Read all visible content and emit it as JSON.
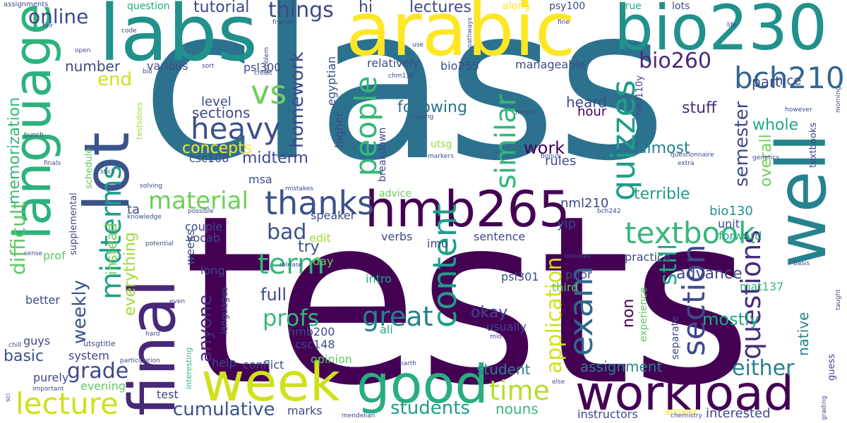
{
  "words": [
    {
      "text": "tests",
      "color": "#440154"
    },
    {
      "text": "class",
      "color": "#2c728e"
    },
    {
      "text": "language",
      "color": "#2db27d"
    },
    {
      "text": "labs",
      "color": "#21918c"
    },
    {
      "text": "arabic",
      "color": "#fde725"
    },
    {
      "text": "bio230",
      "color": "#21918c"
    },
    {
      "text": "lot",
      "color": "#3b528b"
    },
    {
      "text": "final",
      "color": "#482878"
    },
    {
      "text": "well",
      "color": "#26828e"
    },
    {
      "text": "week",
      "color": "#d0e11c"
    },
    {
      "text": "good",
      "color": "#28ae80"
    },
    {
      "text": "workload",
      "color": "#440154"
    },
    {
      "text": "hmb265",
      "color": "#440154"
    },
    {
      "text": "bch210",
      "color": "#31688e"
    },
    {
      "text": "quizzes",
      "color": "#1f9e89"
    },
    {
      "text": "thanks",
      "color": "#3b528b"
    },
    {
      "text": "heavy",
      "color": "#3b528b"
    },
    {
      "text": "vs",
      "color": "#6ece58"
    },
    {
      "text": "term",
      "color": "#35b779"
    },
    {
      "text": "textbook",
      "color": "#35b779"
    },
    {
      "text": "exam",
      "color": "#31688e"
    },
    {
      "text": "people",
      "color": "#35b779"
    },
    {
      "text": "content",
      "color": "#1f9e89"
    },
    {
      "text": "section",
      "color": "#3e4989"
    },
    {
      "text": "questions",
      "color": "#472d7b"
    },
    {
      "text": "similar",
      "color": "#35b779"
    },
    {
      "text": "lecture",
      "color": "#d0e11c"
    },
    {
      "text": "midterms",
      "color": "#1f9e89"
    },
    {
      "text": "material",
      "color": "#6ece58"
    },
    {
      "text": "time",
      "color": "#b5de2b"
    },
    {
      "text": "students",
      "color": "#1f9e89"
    },
    {
      "text": "great",
      "color": "#26828e"
    },
    {
      "text": "profs",
      "color": "#35b779"
    },
    {
      "text": "cumulative",
      "color": "#3b528b"
    },
    {
      "text": "bio260",
      "color": "#482878"
    },
    {
      "text": "things",
      "color": "#3e4989"
    },
    {
      "text": "online",
      "color": "#3e4989"
    },
    {
      "text": "difficult",
      "color": "#5ec962"
    },
    {
      "text": "memorization",
      "color": "#35b779"
    },
    {
      "text": "homework",
      "color": "#3e4989"
    },
    {
      "text": "semester",
      "color": "#3e4989"
    },
    {
      "text": "still",
      "color": "#22a884"
    },
    {
      "text": "either",
      "color": "#26828e"
    },
    {
      "text": "application",
      "color": "#d0e11c"
    },
    {
      "text": "grade",
      "color": "#3e4989"
    },
    {
      "text": "weekly",
      "color": "#3b528b"
    },
    {
      "text": "anyone",
      "color": "#482878"
    },
    {
      "text": "concepts",
      "color": "#fde725"
    },
    {
      "text": "end",
      "color": "#d0e11c"
    },
    {
      "text": "bad",
      "color": "#3b528b"
    },
    {
      "text": "basic",
      "color": "#3b528b"
    },
    {
      "text": "mostly",
      "color": "#22a884"
    },
    {
      "text": "overall",
      "color": "#6ece58"
    },
    {
      "text": "whole",
      "color": "#22a884"
    },
    {
      "text": "stuff",
      "color": "#472d7b"
    },
    {
      "text": "sections",
      "color": "#3e4989"
    },
    {
      "text": "work",
      "color": "#440154"
    },
    {
      "text": "assignment",
      "color": "#26828e"
    },
    {
      "text": "terrible",
      "color": "#1f9e89"
    },
    {
      "text": "advance",
      "color": "#3e4989"
    },
    {
      "text": "everything",
      "color": "#a0da39"
    },
    {
      "text": "instead",
      "color": "#6ece58"
    },
    {
      "text": "following",
      "color": "#2c728e"
    },
    {
      "text": "lectures",
      "color": "#3e4989"
    },
    {
      "text": "tutorial",
      "color": "#3e4989"
    },
    {
      "text": "hi",
      "color": "#3e4989"
    },
    {
      "text": "heard",
      "color": "#3e4989"
    },
    {
      "text": "full",
      "color": "#3e4989"
    },
    {
      "text": "try",
      "color": "#3b528b"
    },
    {
      "text": "okay",
      "color": "#3e4989"
    },
    {
      "text": "non",
      "color": "#440154"
    },
    {
      "text": "student",
      "color": "#26828e"
    },
    {
      "text": "interested",
      "color": "#3e4989"
    },
    {
      "text": "nouns",
      "color": "#35b779"
    },
    {
      "text": "native",
      "color": "#26828e"
    },
    {
      "text": "almost",
      "color": "#26828e"
    },
    {
      "text": "midterm",
      "color": "#3e4989"
    },
    {
      "text": "level",
      "color": "#3e4989"
    },
    {
      "text": "number",
      "color": "#3e4989"
    },
    {
      "text": "part",
      "color": "#3e4989"
    },
    {
      "text": "nice",
      "color": "#3e4989"
    },
    {
      "text": "rules",
      "color": "#3e4989"
    },
    {
      "text": "hour",
      "color": "#440154"
    },
    {
      "text": "bio130",
      "color": "#21918c"
    },
    {
      "text": "unit",
      "color": "#3e4989"
    },
    {
      "text": "nml210",
      "color": "#3e4989"
    },
    {
      "text": "yip",
      "color": "#3e4989"
    },
    {
      "text": "mat137",
      "color": "#35b779"
    },
    {
      "text": "practice",
      "color": "#3e4989"
    },
    {
      "text": "forward",
      "color": "#22a884"
    },
    {
      "text": "ta",
      "color": "#3e4989"
    },
    {
      "text": "couple",
      "color": "#3e4989"
    },
    {
      "text": "vocab",
      "color": "#3e4989"
    },
    {
      "text": "weeks",
      "color": "#3e4989"
    },
    {
      "text": "long",
      "color": "#3e4989"
    },
    {
      "text": "prof",
      "color": "#5ec962"
    },
    {
      "text": "better",
      "color": "#3e4989"
    },
    {
      "text": "system",
      "color": "#3e4989"
    },
    {
      "text": "purely",
      "color": "#3e4989"
    },
    {
      "text": "evening",
      "color": "#5ec962"
    },
    {
      "text": "test",
      "color": "#3e4989"
    },
    {
      "text": "marks",
      "color": "#3e4989"
    },
    {
      "text": "guys",
      "color": "#3e4989"
    },
    {
      "text": "help",
      "color": "#3e4989"
    },
    {
      "text": "conflict",
      "color": "#3e4989"
    },
    {
      "text": "opinion",
      "color": "#5ec962"
    },
    {
      "text": "csc148",
      "color": "#3e4989"
    },
    {
      "text": "hmb200",
      "color": "#3e4989"
    },
    {
      "text": "ali",
      "color": "#22a884"
    },
    {
      "text": "usually",
      "color": "#3e4989"
    },
    {
      "text": "edit",
      "color": "#a0da39"
    },
    {
      "text": "speaker",
      "color": "#3e4989"
    },
    {
      "text": "verbs",
      "color": "#3e4989"
    },
    {
      "text": "imo",
      "color": "#3e4989"
    },
    {
      "text": "sentence",
      "color": "#3e4989"
    },
    {
      "text": "day",
      "color": "#6ece58"
    },
    {
      "text": "intro",
      "color": "#22a884"
    },
    {
      "text": "psl301",
      "color": "#3e4989"
    },
    {
      "text": "prior",
      "color": "#3e4989"
    },
    {
      "text": "third",
      "color": "#5ec962"
    },
    {
      "text": "separate",
      "color": "#3e4989"
    },
    {
      "text": "experience",
      "color": "#5ec962"
    },
    {
      "text": "instructors",
      "color": "#3e4989"
    },
    {
      "text": "answer",
      "color": "#fde725"
    },
    {
      "text": "msa",
      "color": "#3e4989"
    },
    {
      "text": "csc108",
      "color": "#3e4989"
    },
    {
      "text": "advice",
      "color": "#6ece58"
    },
    {
      "text": "various",
      "color": "#3e4989"
    },
    {
      "text": "relatively",
      "color": "#3e4989"
    },
    {
      "text": "bio255",
      "color": "#3e4989"
    },
    {
      "text": "manageable",
      "color": "#3e4989"
    },
    {
      "text": "psl300",
      "color": "#3e4989"
    },
    {
      "text": "egyptian",
      "color": "#3e4989"
    },
    {
      "text": "higher",
      "color": "#3e4989"
    },
    {
      "text": "breakdown",
      "color": "#3e4989"
    },
    {
      "text": "utsg",
      "color": "#a0da39"
    },
    {
      "text": "question",
      "color": "#22a884"
    },
    {
      "text": "along",
      "color": "#fde725"
    },
    {
      "text": "psy100",
      "color": "#3e4989"
    },
    {
      "text": "true",
      "color": "#22a884"
    },
    {
      "text": "lots",
      "color": "#3e4989"
    },
    {
      "text": "nml110y",
      "color": "#3e4989"
    },
    {
      "text": "supplemental",
      "color": "#3e4989"
    },
    {
      "text": "schedule",
      "color": "#5ec962"
    },
    {
      "text": "testsdoes",
      "color": "#a0da39"
    },
    {
      "text": "languages",
      "color": "#3e4989"
    },
    {
      "text": "interesting",
      "color": "#35b779"
    },
    {
      "text": "utsgtitle",
      "color": "#3e4989"
    },
    {
      "text": "textbooks",
      "color": "#3e4989"
    },
    {
      "text": "guess",
      "color": "#3e4989"
    },
    {
      "text": "assignments",
      "color": "#3e4989"
    },
    {
      "text": "fair",
      "color": "#3e4989"
    },
    {
      "text": "code",
      "color": "#3e4989"
    },
    {
      "text": "open",
      "color": "#3e4989"
    },
    {
      "text": "bio",
      "color": "#3e4989"
    },
    {
      "text": "friends",
      "color": "#3e4989"
    },
    {
      "text": "problem",
      "color": "#3e4989"
    },
    {
      "text": "credit",
      "color": "#3e4989"
    },
    {
      "text": "sort",
      "color": "#3e4989"
    },
    {
      "text": "use",
      "color": "#3e4989"
    },
    {
      "text": "pathways",
      "color": "#3e4989"
    },
    {
      "text": "fine",
      "color": "#3e4989"
    },
    {
      "text": "life",
      "color": "#3e4989"
    },
    {
      "text": "chm136",
      "color": "#3e4989"
    },
    {
      "text": "reading",
      "color": "#3e4989"
    },
    {
      "text": "timely",
      "color": "#3e4989"
    },
    {
      "text": "however",
      "color": "#3e4989"
    },
    {
      "text": "morning",
      "color": "#3e4989"
    },
    {
      "text": "bunch",
      "color": "#3e4989"
    },
    {
      "text": "finals",
      "color": "#3e4989"
    },
    {
      "text": "stick",
      "color": "#3e4989"
    },
    {
      "text": "solving",
      "color": "#3e4989"
    },
    {
      "text": "mistakes",
      "color": "#3e4989"
    },
    {
      "text": "possible",
      "color": "#3e4989"
    },
    {
      "text": "knowledge",
      "color": "#3e4989"
    },
    {
      "text": "markers",
      "color": "#3e4989"
    },
    {
      "text": "bonus",
      "color": "#3e4989"
    },
    {
      "text": "questionnaire",
      "color": "#3e4989"
    },
    {
      "text": "extra",
      "color": "#3e4989"
    },
    {
      "text": "genetics",
      "color": "#3e4989"
    },
    {
      "text": "bch242",
      "color": "#3e4989"
    },
    {
      "text": "minutes",
      "color": "#3e4989"
    },
    {
      "text": "basis",
      "color": "#3e4989"
    },
    {
      "text": "taught",
      "color": "#3e4989"
    },
    {
      "text": "potential",
      "color": "#3e4989"
    },
    {
      "text": "sense",
      "color": "#3e4989"
    },
    {
      "text": "release",
      "color": "#3e4989"
    },
    {
      "text": "even",
      "color": "#3e4989"
    },
    {
      "text": "hard",
      "color": "#3e4989"
    },
    {
      "text": "chill",
      "color": "#3e4989"
    },
    {
      "text": "participation",
      "color": "#3e4989"
    },
    {
      "text": "sci",
      "color": "#3e4989"
    },
    {
      "text": "important",
      "color": "#3e4989"
    },
    {
      "text": "earth",
      "color": "#3e4989"
    },
    {
      "text": "else",
      "color": "#3e4989"
    },
    {
      "text": "mid",
      "color": "#3e4989"
    },
    {
      "text": "mendelian",
      "color": "#3e4989"
    },
    {
      "text": "chemistry",
      "color": "#3e4989"
    },
    {
      "text": "grading",
      "color": "#3e4989"
    }
  ]
}
